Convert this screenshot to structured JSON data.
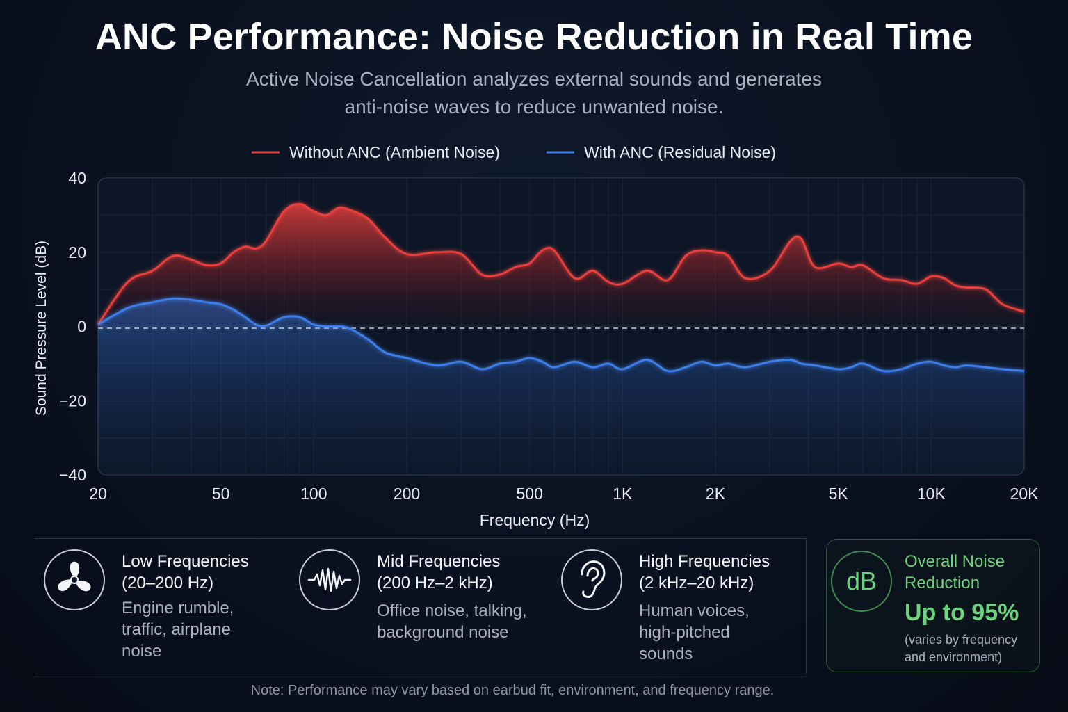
{
  "header": {
    "title": "ANC Performance: Noise Reduction in Real Time",
    "subtitle_line1": "Active Noise Cancellation analyzes external sounds and generates",
    "subtitle_line2": "anti-noise waves to reduce unwanted noise."
  },
  "chart_data": {
    "type": "area",
    "xlabel": "Frequency (Hz)",
    "ylabel": "Sound Pressure Level (dB)",
    "x_scale": "log",
    "xlim": [
      20,
      20000
    ],
    "ylim": [
      -40,
      40
    ],
    "grid": true,
    "legend_position": "top-center",
    "x_ticks": [
      {
        "value": 20,
        "label": "20"
      },
      {
        "value": 50,
        "label": "50"
      },
      {
        "value": 100,
        "label": "100"
      },
      {
        "value": 200,
        "label": "200"
      },
      {
        "value": 500,
        "label": "500"
      },
      {
        "value": 1000,
        "label": "1K"
      },
      {
        "value": 2000,
        "label": "2K"
      },
      {
        "value": 5000,
        "label": "5K"
      },
      {
        "value": 10000,
        "label": "10K"
      },
      {
        "value": 20000,
        "label": "20K"
      }
    ],
    "y_ticks": [
      {
        "value": 40,
        "label": "40"
      },
      {
        "value": 20,
        "label": "20"
      },
      {
        "value": 0,
        "label": "0"
      },
      {
        "value": -20,
        "label": "−20"
      },
      {
        "value": -40,
        "label": "−40"
      }
    ],
    "reference_line": 0,
    "series": [
      {
        "name": "Without ANC (Ambient Noise)",
        "color": "#e8403c",
        "x": [
          20,
          25,
          30,
          35,
          40,
          45,
          50,
          55,
          60,
          65,
          70,
          80,
          90,
          100,
          110,
          120,
          130,
          150,
          170,
          200,
          250,
          300,
          350,
          400,
          450,
          500,
          550,
          600,
          700,
          800,
          900,
          1000,
          1200,
          1400,
          1600,
          1800,
          2000,
          2200,
          2500,
          3000,
          3500,
          3800,
          4200,
          5000,
          5500,
          6000,
          7000,
          8000,
          9000,
          10000,
          11000,
          12000,
          13000,
          15000,
          17000,
          20000
        ],
        "y": [
          0.5,
          12,
          15,
          19,
          18,
          16.5,
          17,
          20,
          21.5,
          21,
          23,
          31,
          33,
          31,
          30,
          32,
          31.5,
          29,
          24,
          19.5,
          20,
          19.5,
          14,
          14,
          16,
          17,
          20.5,
          20.5,
          13,
          15,
          12,
          11.5,
          15,
          12.5,
          19,
          20.5,
          20,
          19,
          13,
          15,
          23,
          23.5,
          16,
          17,
          16,
          16.5,
          13,
          12.5,
          11.5,
          13.5,
          13,
          11,
          10.5,
          10,
          6,
          4
        ]
      },
      {
        "name": "With ANC (Residual Noise)",
        "color": "#3d7ee8",
        "x": [
          20,
          25,
          30,
          35,
          40,
          45,
          50,
          55,
          60,
          65,
          70,
          80,
          90,
          100,
          110,
          120,
          130,
          150,
          170,
          200,
          250,
          300,
          350,
          400,
          450,
          500,
          550,
          600,
          700,
          800,
          900,
          1000,
          1200,
          1400,
          1600,
          1800,
          2000,
          2200,
          2500,
          3000,
          3500,
          3800,
          4200,
          5000,
          5500,
          6000,
          7000,
          8000,
          9000,
          10000,
          11000,
          12000,
          13000,
          15000,
          17000,
          20000
        ],
        "y": [
          0.5,
          5,
          6.5,
          7.5,
          7.2,
          6.5,
          6,
          4.5,
          2.5,
          0.5,
          0.2,
          2.5,
          2.5,
          0.5,
          0,
          0,
          -0.5,
          -3.5,
          -7,
          -8.5,
          -10.5,
          -9.5,
          -11.5,
          -10,
          -9.5,
          -8.5,
          -9.5,
          -11,
          -9.5,
          -11,
          -10,
          -11.5,
          -9,
          -12,
          -11,
          -9.5,
          -10.5,
          -10,
          -11,
          -9.5,
          -9,
          -10,
          -10.5,
          -11.5,
          -11,
          -10,
          -12,
          -11.5,
          -10,
          -9.5,
          -10.5,
          -11,
          -10.5,
          -11,
          -11.5,
          -12
        ]
      }
    ]
  },
  "cards": [
    {
      "icon": "fan-icon",
      "title_line1": "Low Frequencies",
      "title_line2": "(20–200 Hz)",
      "desc_line1": "Engine rumble,",
      "desc_line2": "traffic, airplane",
      "desc_line3": "noise"
    },
    {
      "icon": "waveform-icon",
      "title_line1": "Mid Frequencies",
      "title_line2": "(200 Hz–2 kHz)",
      "desc_line1": "Office noise, talking,",
      "desc_line2": "background noise",
      "desc_line3": ""
    },
    {
      "icon": "ear-icon",
      "title_line1": "High Frequencies",
      "title_line2": "(2 kHz–20 kHz)",
      "desc_line1": "Human voices,",
      "desc_line2": "high-pitched",
      "desc_line3": "sounds"
    }
  ],
  "summary": {
    "badge": "dB",
    "title_line1": "Overall Noise",
    "title_line2": "Reduction",
    "value": "Up to 95%",
    "note_line1": "(varies by frequency",
    "note_line2": "and environment)",
    "accent": "#6dd47e"
  },
  "footer": {
    "note": "Note: Performance may vary based on earbud fit, environment, and frequency range."
  }
}
